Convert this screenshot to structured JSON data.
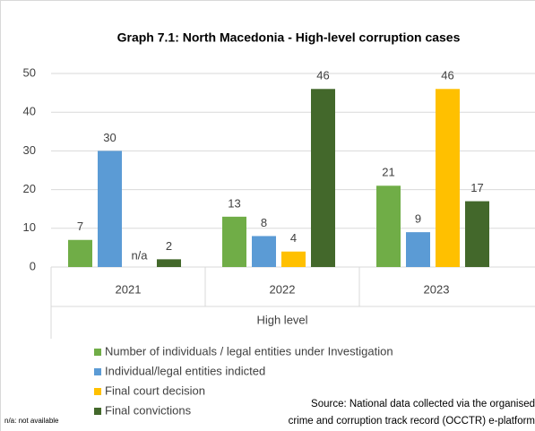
{
  "chart_data": {
    "type": "bar",
    "title": "Graph 7.1: North Macedonia - High-level corruption cases",
    "categories": [
      "2021",
      "2022",
      "2023"
    ],
    "group_label": "High level",
    "series": [
      {
        "name": "Number of individuals / legal entities under Investigation",
        "color": "#70ad47",
        "values": [
          7,
          13,
          21
        ]
      },
      {
        "name": "Individual/legal entities indicted",
        "color": "#5b9bd5",
        "values": [
          30,
          8,
          9
        ]
      },
      {
        "name": "Final court decision",
        "color": "#ffc000",
        "values": [
          null,
          4,
          46
        ],
        "value_labels": [
          "n/a",
          "4",
          "46"
        ]
      },
      {
        "name": "Final convictions",
        "color": "#43682b",
        "values": [
          2,
          46,
          17
        ]
      }
    ],
    "ylim": [
      0,
      50
    ],
    "yticks": [
      0,
      10,
      20,
      30,
      40,
      50
    ],
    "grid": true,
    "note": "n/a: not available",
    "source": [
      "Source: National data collected via the organised",
      "crime and corruption track record (OCCTR) e-platform"
    ]
  }
}
